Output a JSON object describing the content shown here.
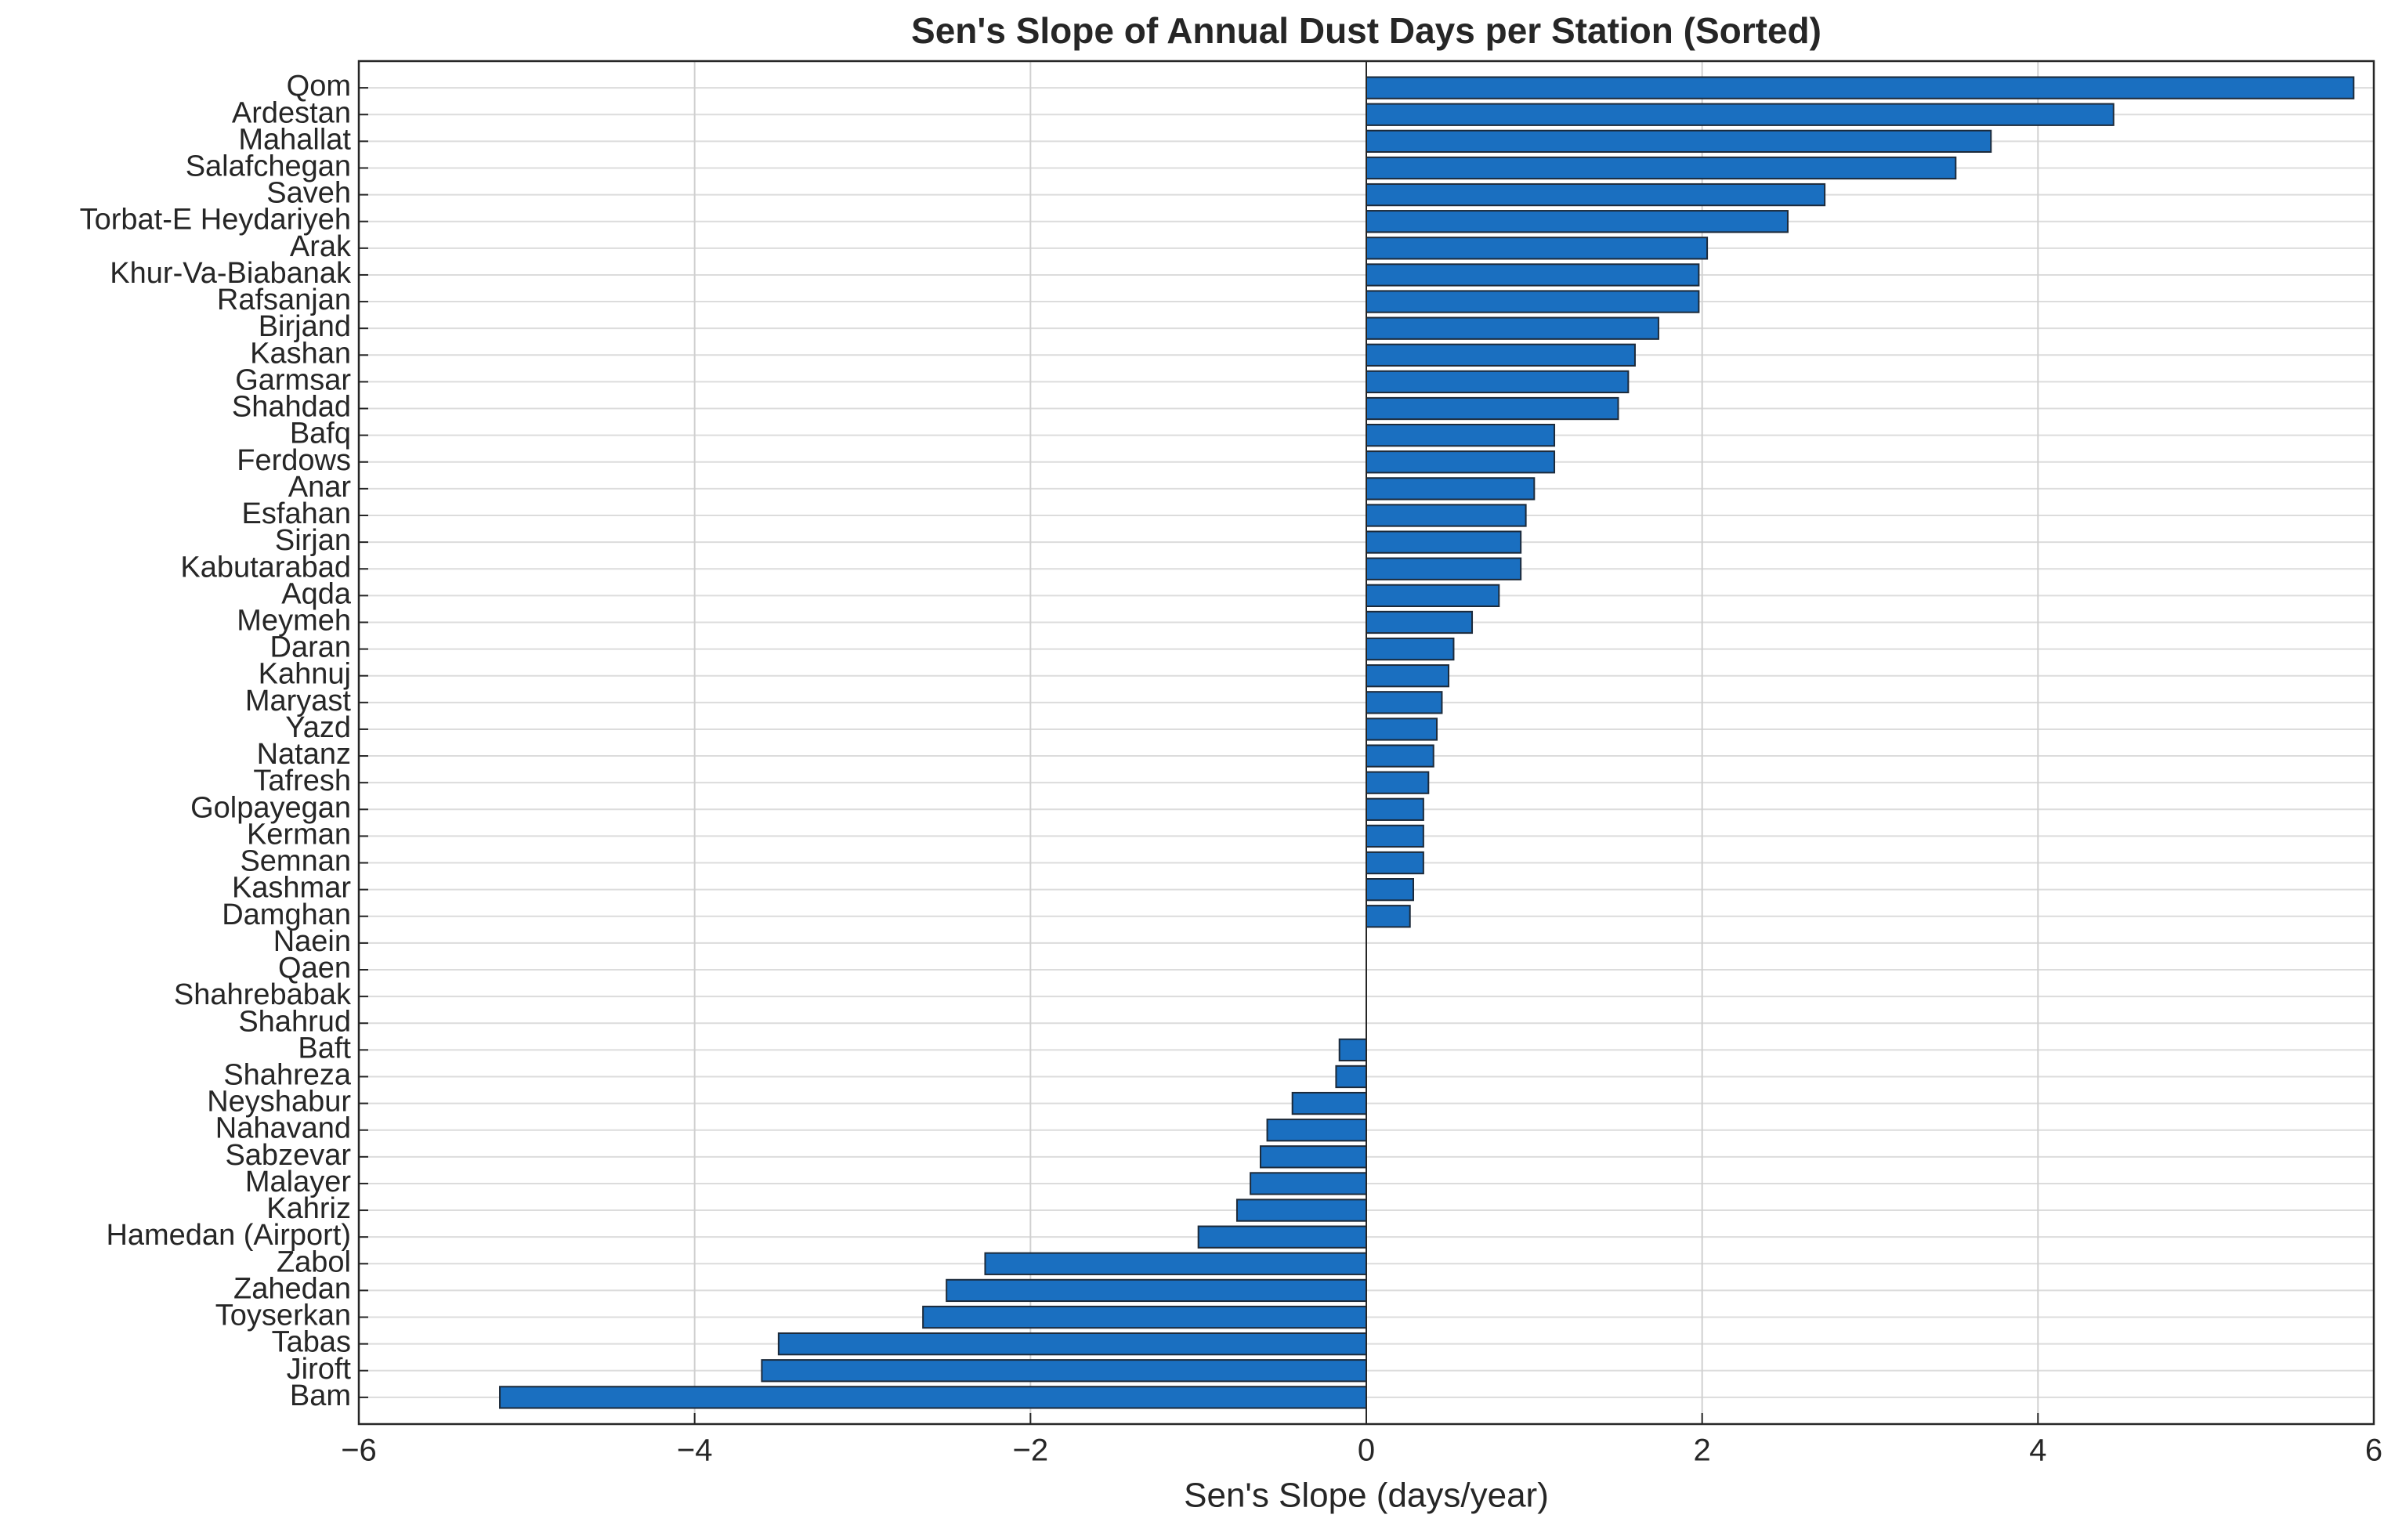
{
  "chart_data": {
    "type": "barh",
    "title": "Sen's Slope of Annual Dust Days per Station (Sorted)",
    "x_label": "Sen's Slope (days/year)",
    "categories": [
      "Qom",
      "Ardestan",
      "Mahallat",
      "Salafchegan",
      "Saveh",
      "Torbat-E Heydariyeh",
      "Arak",
      "Khur-Va-Biabanak",
      "Rafsanjan",
      "Birjand",
      "Kashan",
      "Garmsar",
      "Shahdad",
      "Bafq",
      "Ferdows",
      "Anar",
      "Esfahan",
      "Sirjan",
      "Kabutarabad",
      "Aqda",
      "Meymeh",
      "Daran",
      "Kahnuj",
      "Maryast",
      "Yazd",
      "Natanz",
      "Tafresh",
      "Golpayegan",
      "Kerman",
      "Semnan",
      "Kashmar",
      "Damghan",
      "Naein",
      "Qaen",
      "Shahrebabak",
      "Shahrud",
      "Baft",
      "Shahreza",
      "Neyshabur",
      "Nahavand",
      "Sabzevar",
      "Malayer",
      "Kahriz",
      "Hamedan (Airport)",
      "Zabol",
      "Zahedan",
      "Toyserkan",
      "Tabas",
      "Jiroft",
      "Bam"
    ],
    "values": [
      5.88,
      4.45,
      3.72,
      3.51,
      2.73,
      2.51,
      2.03,
      1.98,
      1.98,
      1.74,
      1.6,
      1.56,
      1.5,
      1.12,
      1.12,
      1.0,
      0.95,
      0.92,
      0.92,
      0.79,
      0.63,
      0.52,
      0.49,
      0.45,
      0.42,
      0.4,
      0.37,
      0.34,
      0.34,
      0.34,
      0.28,
      0.26,
      0,
      0,
      0,
      0,
      -0.16,
      -0.18,
      -0.44,
      -0.59,
      -0.63,
      -0.69,
      -0.77,
      -1.0,
      -2.27,
      -2.5,
      -2.64,
      -3.5,
      -3.6,
      -5.16
    ],
    "color": "#1a6fc0",
    "edge_color": "#1c2a3a",
    "xlim": [
      -6,
      6
    ],
    "xticks": [
      {
        "value": -6,
        "label": "−6"
      },
      {
        "value": -4,
        "label": "−4"
      },
      {
        "value": -2,
        "label": "−2"
      },
      0,
      2,
      4,
      6
    ],
    "grid": true
  }
}
